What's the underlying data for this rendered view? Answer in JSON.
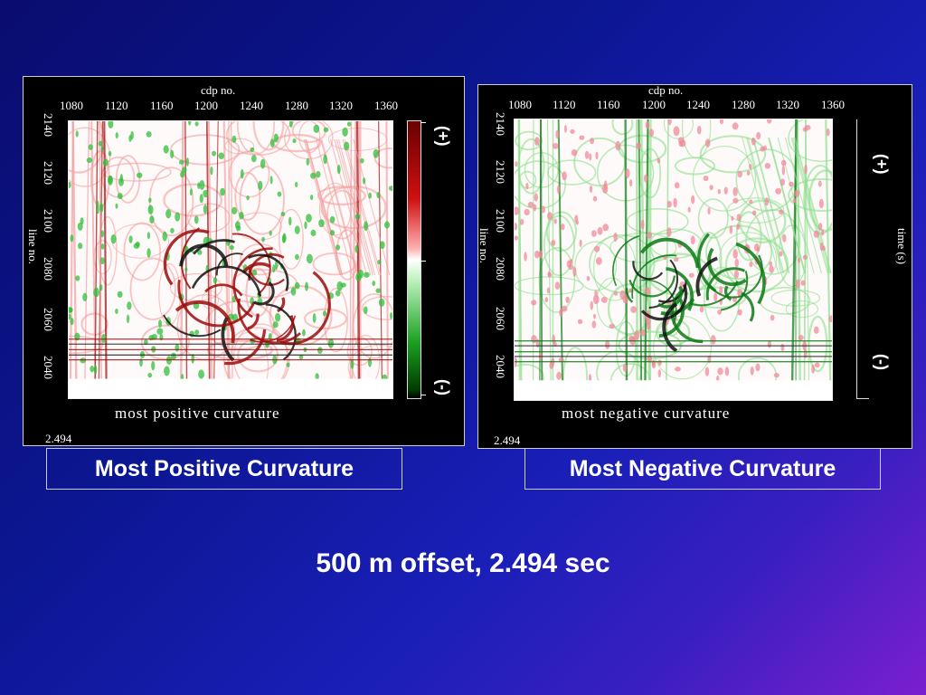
{
  "slide": {
    "subtitle": "500 m offset, 2.494 sec"
  },
  "panels": [
    {
      "id": "positive",
      "box_label": "Most Positive Curvature",
      "axis_title_top": "cdp no.",
      "axis_title_left": "line no.",
      "x_ticks": [
        "1080",
        "1120",
        "1160",
        "1200",
        "1240",
        "1280",
        "1320",
        "1360"
      ],
      "y_ticks": [
        "2140",
        "2120",
        "2100",
        "2080",
        "2060",
        "2040"
      ],
      "caption": "most positive curvature",
      "corner_value": "2.494",
      "polarity_plus": "(+)",
      "polarity_minus": "(-)",
      "palette": "red-white-green",
      "feature_color": "#9c0a0a",
      "speckle_color": "#2fbf3a"
    },
    {
      "id": "negative",
      "box_label": "Most Negative Curvature",
      "axis_title_top": "cdp no.",
      "axis_title_left": "line no.",
      "x_ticks": [
        "1080",
        "1120",
        "1160",
        "1200",
        "1240",
        "1280",
        "1320",
        "1360"
      ],
      "y_ticks": [
        "2140",
        "2120",
        "2100",
        "2080",
        "2060",
        "2040"
      ],
      "caption": "most negative curvature",
      "corner_value": "2.494",
      "time_label": "time (s)",
      "polarity_plus": "(+)",
      "polarity_minus": "(-)",
      "palette": "green-white",
      "feature_color": "#0a7a14",
      "speckle_color": "#f08a9a"
    }
  ]
}
